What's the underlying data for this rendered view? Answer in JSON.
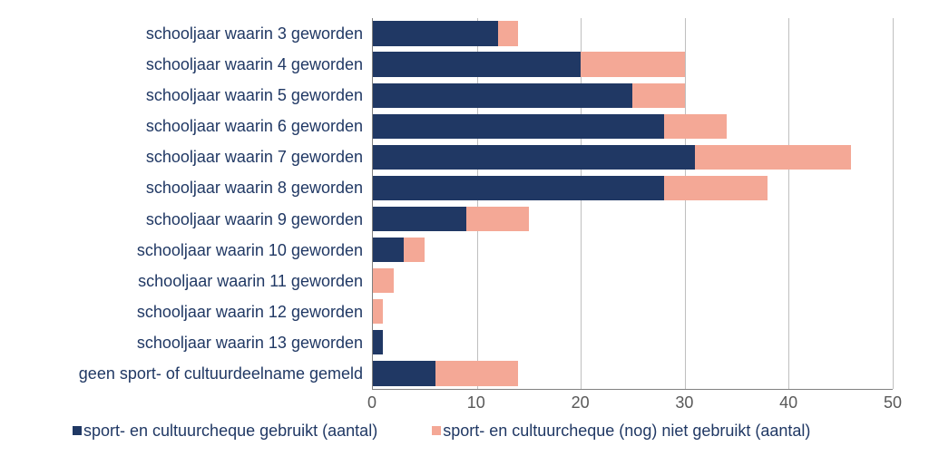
{
  "chart": {
    "type": "bar-stacked-horizontal",
    "background_color": "#ffffff",
    "label_color": "#203864",
    "axis_label_color": "#595959",
    "grid_color": "#bfbfbf",
    "axis_line_color": "#808080",
    "label_fontsize": 18,
    "tick_fontsize": 18,
    "xlim_max": 50,
    "xtick_step": 10,
    "xticks": [
      0,
      10,
      20,
      30,
      40,
      50
    ],
    "categories": [
      "schooljaar waarin   3 geworden",
      "schooljaar waarin   4 geworden",
      "schooljaar waarin   5 geworden",
      "schooljaar waarin   6 geworden",
      "schooljaar waarin   7 geworden",
      "schooljaar waarin   8 geworden",
      "schooljaar waarin   9 geworden",
      "schooljaar waarin 10 geworden",
      "schooljaar waarin 11 geworden",
      "schooljaar waarin 12 geworden",
      "schooljaar waarin 13 geworden",
      "geen sport- of cultuurdeelname gemeld"
    ],
    "series": [
      {
        "name": "sport- en cultuurcheque gebruikt (aantal)",
        "color": "#203864",
        "values": [
          12,
          20,
          25,
          28,
          31,
          28,
          9,
          3,
          0,
          0,
          1,
          6
        ]
      },
      {
        "name": "sport- en cultuurcheque (nog) niet gebruikt (aantal)",
        "color": "#f4a896",
        "values": [
          2,
          10,
          5,
          6,
          15,
          10,
          6,
          2,
          2,
          1,
          0,
          8
        ]
      }
    ],
    "bar_height_ratio": 0.8
  }
}
